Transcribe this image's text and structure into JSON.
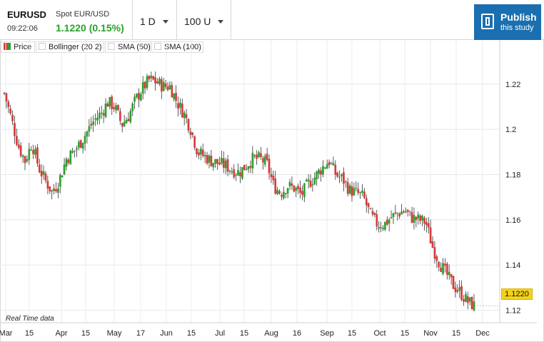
{
  "header": {
    "symbol": "EURUSD",
    "description": "Spot EUR/USD",
    "time": "09:22:06",
    "price_change": "1.1220 (0.15%)",
    "period": "1 D",
    "units": "100 U",
    "publish_title": "Publish",
    "publish_subtitle": "this study"
  },
  "legend": {
    "price": "Price",
    "bollinger": "Bollinger (20 2)",
    "sma50": "SMA (50)",
    "sma100": "SMA (100)"
  },
  "footer_note": "Real Time data",
  "last_price_tag": "1.1220",
  "colors": {
    "up": "#2aa12a",
    "down": "#d73a3a",
    "accent": "#1a6fb0",
    "price_tag": "#f4d21c"
  },
  "chart_data": {
    "type": "candlestick",
    "x_tick_labels": [
      "Mar",
      "15",
      "Apr",
      "15",
      "May",
      "17",
      "Jun",
      "15",
      "Jul",
      "15",
      "Aug",
      "16",
      "Sep",
      "15",
      "Oct",
      "15",
      "Nov",
      "15",
      "Dec"
    ],
    "y_tick_labels": [
      "1.22",
      "1.2",
      "1.18",
      "1.16",
      "1.14",
      "1.12"
    ],
    "y_ticks": [
      1.22,
      1.2,
      1.18,
      1.16,
      1.14,
      1.12
    ],
    "ylim": [
      1.1145,
      1.2332
    ],
    "grid": true,
    "last_close": 1.122,
    "close_path": [
      [
        "Mar 1",
        1.216
      ],
      [
        "Mar 5",
        1.205
      ],
      [
        "Mar 10",
        1.193
      ],
      [
        "Mar 14",
        1.186
      ],
      [
        "Mar 20",
        1.194
      ],
      [
        "Mar 24",
        1.183
      ],
      [
        "Mar 30",
        1.177
      ],
      [
        "Apr 3",
        1.172
      ],
      [
        "Apr 8",
        1.178
      ],
      [
        "Apr 13",
        1.187
      ],
      [
        "Apr 17",
        1.19
      ],
      [
        "Apr 22",
        1.194
      ],
      [
        "Apr 27",
        1.199
      ],
      [
        "May 3",
        1.204
      ],
      [
        "May 8",
        1.207
      ],
      [
        "May 13",
        1.212
      ],
      [
        "May 18",
        1.21
      ],
      [
        "May 23",
        1.202
      ],
      [
        "May 27",
        1.206
      ],
      [
        "Jun 1",
        1.213
      ],
      [
        "Jun 6",
        1.218
      ],
      [
        "Jun 9",
        1.222
      ],
      [
        "Jun 13",
        1.221
      ],
      [
        "Jun 17",
        1.219
      ],
      [
        "Jun 21",
        1.219
      ],
      [
        "Jun 24",
        1.212
      ],
      [
        "Jun 28",
        1.207
      ],
      [
        "Jul 2",
        1.2
      ],
      [
        "Jul 6",
        1.19
      ],
      [
        "Jul 10",
        1.188
      ],
      [
        "Jul 15",
        1.186
      ],
      [
        "Jul 20",
        1.185
      ],
      [
        "Jul 25",
        1.184
      ],
      [
        "Aug 1",
        1.182
      ],
      [
        "Aug 6",
        1.181
      ],
      [
        "Aug 11",
        1.184
      ],
      [
        "Aug 16",
        1.187
      ],
      [
        "Aug 20",
        1.187
      ],
      [
        "Aug 25",
        1.185
      ],
      [
        "Aug 30",
        1.175
      ],
      [
        "Sep 3",
        1.172
      ],
      [
        "Sep 8",
        1.175
      ],
      [
        "Sep 13",
        1.174
      ],
      [
        "Sep 17",
        1.171
      ],
      [
        "Sep 21",
        1.176
      ],
      [
        "Sep 26",
        1.179
      ],
      [
        "Sep 30",
        1.183
      ],
      [
        "Oct 5",
        1.186
      ],
      [
        "Oct 9",
        1.18
      ],
      [
        "Oct 13",
        1.178
      ],
      [
        "Oct 17",
        1.173
      ],
      [
        "Oct 22",
        1.172
      ],
      [
        "Oct 27",
        1.17
      ],
      [
        "Oct 31",
        1.162
      ],
      [
        "Nov 4",
        1.158
      ],
      [
        "Nov 8",
        1.158
      ],
      [
        "Nov 12",
        1.161
      ],
      [
        "Nov 16",
        1.163
      ],
      [
        "Nov 20",
        1.164
      ],
      [
        "Nov 24",
        1.161
      ],
      [
        "Nov 28",
        1.16
      ],
      [
        "Dec 2",
        1.159
      ],
      [
        "Dec 6",
        1.148
      ],
      [
        "Dec 10",
        1.141
      ],
      [
        "Dec 14",
        1.136
      ],
      [
        "Dec 18",
        1.131
      ],
      [
        "Dec 22",
        1.128
      ],
      [
        "Dec 26",
        1.124
      ],
      [
        "Dec 30",
        1.122
      ]
    ]
  }
}
